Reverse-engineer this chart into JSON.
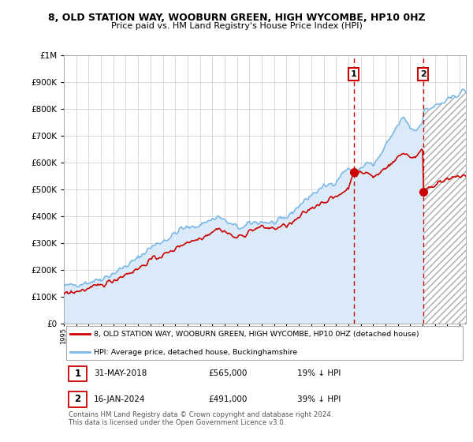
{
  "title1": "8, OLD STATION WAY, WOOBURN GREEN, HIGH WYCOMBE, HP10 0HZ",
  "title2": "Price paid vs. HM Land Registry's House Price Index (HPI)",
  "legend_line1": "8, OLD STATION WAY, WOOBURN GREEN, HIGH WYCOMBE, HP10 0HZ (detached house)",
  "legend_line2": "HPI: Average price, detached house, Buckinghamshire",
  "point1_label": "1",
  "point1_date": "31-MAY-2018",
  "point1_price": "£565,000",
  "point1_hpi": "19% ↓ HPI",
  "point1_x": 2018.42,
  "point1_y": 565000,
  "point2_label": "2",
  "point2_date": "16-JAN-2024",
  "point2_price": "£491,000",
  "point2_hpi": "39% ↓ HPI",
  "point2_x": 2024.04,
  "point2_y": 491000,
  "copyright": "Contains HM Land Registry data © Crown copyright and database right 2024.\nThis data is licensed under the Open Government Licence v3.0.",
  "hpi_color": "#7ab8e8",
  "price_color": "#cc0000",
  "vline_color": "#cc0000",
  "background_color": "#ffffff",
  "plot_bg_color": "#ffffff",
  "grid_color": "#cccccc",
  "hpi_fill_color": "#daeaf8",
  "ylim": [
    0,
    1000000
  ],
  "xlim_start": 1995.0,
  "xlim_end": 2027.5
}
